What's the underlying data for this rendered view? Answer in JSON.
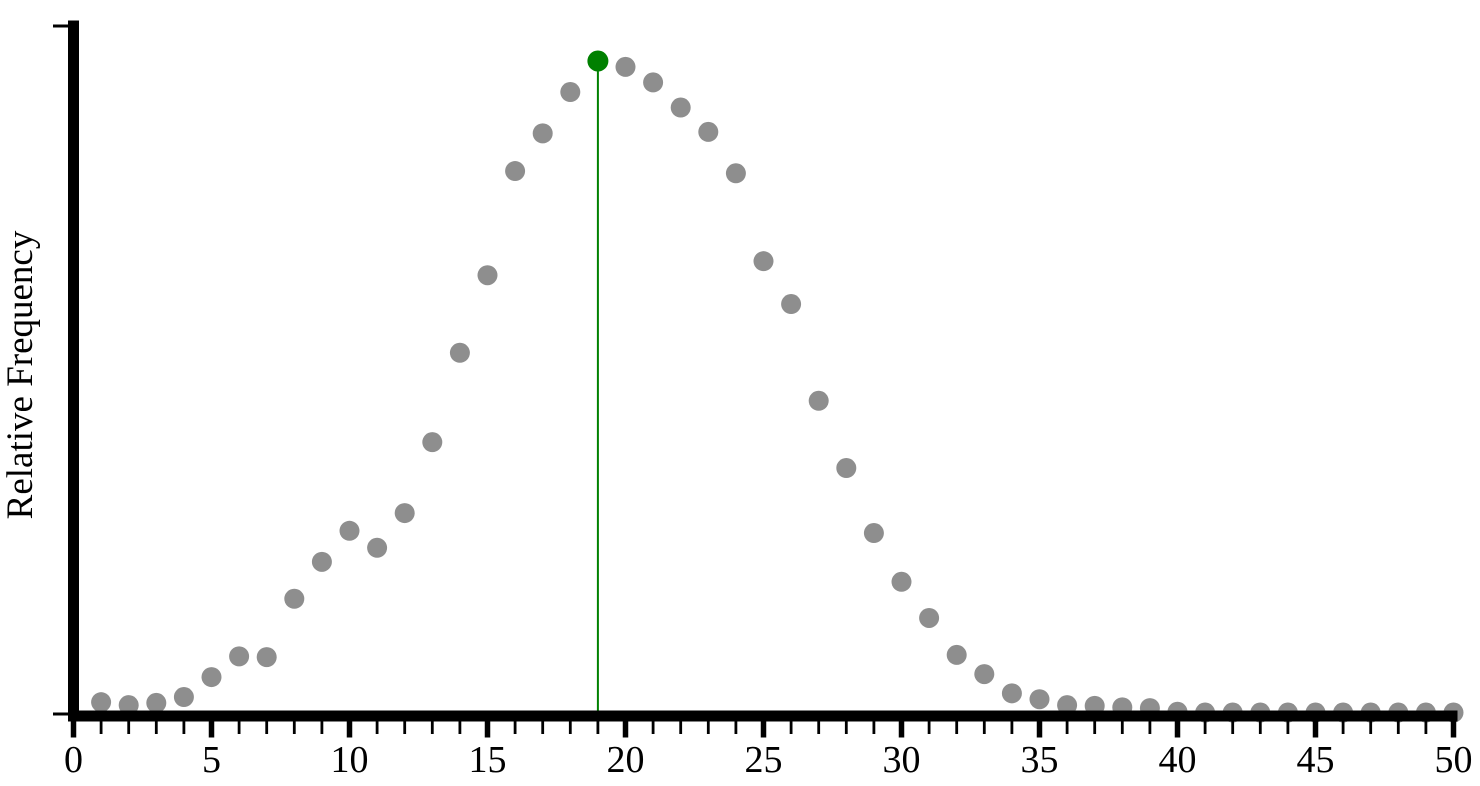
{
  "figure": {
    "background_color": "#ffffff",
    "axis_color": "#000000"
  },
  "chart_data": {
    "type": "scatter",
    "title": "",
    "xlabel": "",
    "ylabel": "Relative Frequency",
    "grid": false,
    "legend": null,
    "xlim": [
      0,
      50
    ],
    "ylim": [
      0,
      0.093
    ],
    "x_major_ticks": [
      0,
      5,
      10,
      15,
      20,
      25,
      30,
      35,
      40,
      45,
      50
    ],
    "x_tick_labels": [
      "0",
      "5",
      "10",
      "15",
      "20",
      "25",
      "30",
      "35",
      "40",
      "45",
      "50"
    ],
    "x_minor_tick_step": 1,
    "y_axis_numeric_labels_shown": false,
    "y_unlabeled_tick_count": 2,
    "series": [
      {
        "name": "relative-frequency-points",
        "marker": "circle",
        "color": "#8e8e8e",
        "x": [
          1,
          2,
          3,
          4,
          5,
          6,
          7,
          8,
          9,
          10,
          11,
          12,
          13,
          14,
          15,
          16,
          17,
          18,
          19,
          20,
          21,
          22,
          23,
          24,
          25,
          26,
          27,
          28,
          29,
          30,
          31,
          32,
          33,
          34,
          35,
          36,
          37,
          38,
          39,
          40,
          41,
          42,
          43,
          44,
          45,
          46,
          47,
          48,
          49,
          50
        ],
        "y": [
          0.0016,
          0.0012,
          0.0015,
          0.0023,
          0.005,
          0.0078,
          0.0077,
          0.0156,
          0.0206,
          0.0248,
          0.0225,
          0.0272,
          0.0368,
          0.0489,
          0.0594,
          0.0735,
          0.0786,
          0.0842,
          0.0884,
          0.0876,
          0.0855,
          0.0821,
          0.0788,
          0.0732,
          0.0613,
          0.0555,
          0.0424,
          0.0333,
          0.0245,
          0.0179,
          0.013,
          0.008,
          0.0054,
          0.0028,
          0.002,
          0.0012,
          0.0011,
          0.0009,
          0.0008,
          0.0003,
          0.0002,
          0.0002,
          0.0002,
          0.0002,
          0.0002,
          0.0002,
          0.0002,
          0.0002,
          0.0002,
          0.0002
        ]
      }
    ],
    "highlight_point": {
      "x": 19,
      "y": 0.0884,
      "color": "#008000",
      "drop_line_to_axis": true
    }
  }
}
